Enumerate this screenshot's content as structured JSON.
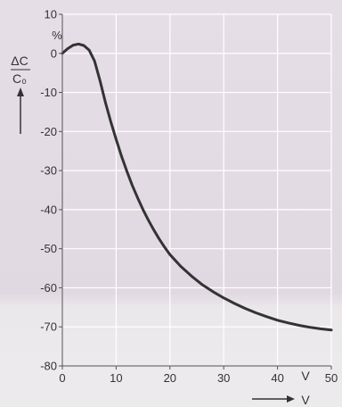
{
  "chart_data": {
    "type": "line",
    "title": "",
    "xlim": [
      0,
      50
    ],
    "ylim": [
      -80,
      10
    ],
    "x_ticks": [
      0,
      10,
      20,
      30,
      40,
      50
    ],
    "y_ticks": [
      10,
      0,
      -10,
      -20,
      -30,
      -40,
      -50,
      -60,
      -70,
      -80
    ],
    "grid": true,
    "ylabel_top": "ΔC",
    "ylabel_bottom": "C₀",
    "y_unit": "%",
    "x_unit": "V",
    "xlabel": "V",
    "series": [
      {
        "color": "#333333",
        "points": [
          [
            0,
            0
          ],
          [
            1,
            1.2
          ],
          [
            2,
            2.1
          ],
          [
            3,
            2.4
          ],
          [
            4,
            2.0
          ],
          [
            5,
            0.8
          ],
          [
            6,
            -2.0
          ],
          [
            7,
            -7
          ],
          [
            8,
            -12.5
          ],
          [
            9,
            -17.5
          ],
          [
            10,
            -22
          ],
          [
            11,
            -26.3
          ],
          [
            12,
            -30.2
          ],
          [
            13,
            -33.8
          ],
          [
            14,
            -37
          ],
          [
            15,
            -40
          ],
          [
            16,
            -42.7
          ],
          [
            17,
            -45.2
          ],
          [
            18,
            -47.5
          ],
          [
            19,
            -49.6
          ],
          [
            20,
            -51.5
          ],
          [
            22,
            -54.5
          ],
          [
            24,
            -57
          ],
          [
            26,
            -59.2
          ],
          [
            28,
            -61
          ],
          [
            30,
            -62.6
          ],
          [
            32,
            -64
          ],
          [
            34,
            -65.3
          ],
          [
            36,
            -66.4
          ],
          [
            38,
            -67.4
          ],
          [
            40,
            -68.3
          ],
          [
            42,
            -69
          ],
          [
            44,
            -69.6
          ],
          [
            46,
            -70.1
          ],
          [
            48,
            -70.5
          ],
          [
            50,
            -70.8
          ]
        ]
      }
    ]
  },
  "colors": {
    "bg_top": "#e5dde4",
    "bg_bottom": "#eceaec",
    "grid": "#ffffff",
    "line": "#333333",
    "axis": "#555555"
  }
}
